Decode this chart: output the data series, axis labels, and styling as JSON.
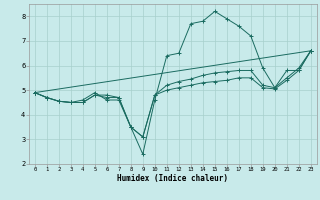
{
  "xlabel": "Humidex (Indice chaleur)",
  "bg_color": "#c8eaea",
  "grid_color": "#a8d0cc",
  "line_color": "#1a6b60",
  "xlim": [
    -0.5,
    23.5
  ],
  "ylim": [
    2,
    8.5
  ],
  "xticks": [
    0,
    1,
    2,
    3,
    4,
    5,
    6,
    7,
    8,
    9,
    10,
    11,
    12,
    13,
    14,
    15,
    16,
    17,
    18,
    19,
    20,
    21,
    22,
    23
  ],
  "yticks": [
    2,
    3,
    4,
    5,
    6,
    7,
    8
  ],
  "lines": [
    {
      "x": [
        0,
        1,
        2,
        3,
        4,
        5,
        6,
        7,
        8,
        9,
        10,
        11,
        12,
        13,
        14,
        15,
        16,
        17,
        18,
        19,
        20,
        21,
        22,
        23
      ],
      "y": [
        4.9,
        4.7,
        4.55,
        4.5,
        4.6,
        4.9,
        4.6,
        4.6,
        3.5,
        2.4,
        4.6,
        6.4,
        6.5,
        7.7,
        7.8,
        8.2,
        7.9,
        7.6,
        7.2,
        5.9,
        5.1,
        5.8,
        5.8,
        6.6
      ]
    },
    {
      "x": [
        0,
        1,
        2,
        3,
        4,
        5,
        6,
        7,
        8,
        9,
        10,
        11,
        12,
        13,
        14,
        15,
        16,
        17,
        18,
        19,
        20,
        21,
        22,
        23
      ],
      "y": [
        4.9,
        4.7,
        4.55,
        4.5,
        4.5,
        4.8,
        4.8,
        4.7,
        3.5,
        3.1,
        4.8,
        5.2,
        5.35,
        5.45,
        5.6,
        5.7,
        5.75,
        5.8,
        5.8,
        5.2,
        5.1,
        5.5,
        5.9,
        6.6
      ]
    },
    {
      "x": [
        0,
        1,
        2,
        3,
        4,
        5,
        6,
        7,
        8,
        9,
        10,
        11,
        12,
        13,
        14,
        15,
        16,
        17,
        18,
        19,
        20,
        21,
        22,
        23
      ],
      "y": [
        4.9,
        4.7,
        4.55,
        4.5,
        4.5,
        4.8,
        4.7,
        4.7,
        3.5,
        3.1,
        4.8,
        5.0,
        5.1,
        5.2,
        5.3,
        5.35,
        5.4,
        5.5,
        5.5,
        5.1,
        5.05,
        5.4,
        5.8,
        6.6
      ]
    },
    {
      "x": [
        0,
        23
      ],
      "y": [
        4.9,
        6.6
      ]
    }
  ]
}
